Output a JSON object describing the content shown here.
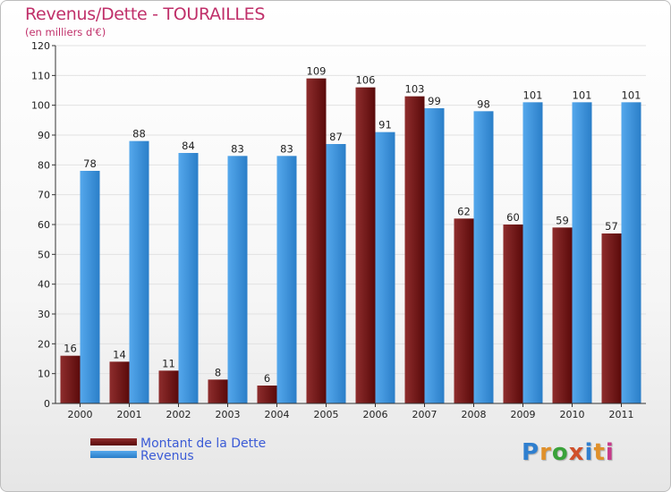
{
  "title": "Revenus/Dette - TOURAILLES",
  "subtitle": "(en milliers d'€)",
  "colors": {
    "dette_dark": "#5a0a0a",
    "dette_light": "#8e2d2d",
    "revenus_dark": "#2a7ec8",
    "revenus_light": "#55a8ec",
    "axis": "#333333",
    "grid": "#e2e2e2"
  },
  "legend": [
    {
      "label": "Montant de la Dette",
      "series": "dette"
    },
    {
      "label": "Revenus",
      "series": "revenus"
    }
  ],
  "logo": {
    "text": "Proxiti"
  },
  "chart_data": {
    "type": "bar",
    "categories": [
      "2000",
      "2001",
      "2002",
      "2003",
      "2004",
      "2005",
      "2006",
      "2007",
      "2008",
      "2009",
      "2010",
      "2011"
    ],
    "series": [
      {
        "name": "Montant de la Dette",
        "values": [
          16,
          14,
          11,
          8,
          6,
          109,
          106,
          103,
          62,
          60,
          59,
          57
        ]
      },
      {
        "name": "Revenus",
        "values": [
          78,
          88,
          84,
          83,
          83,
          87,
          91,
          99,
          98,
          101,
          101,
          101
        ]
      }
    ],
    "ylim": [
      0,
      120
    ],
    "yticks": [
      0,
      10,
      20,
      30,
      40,
      50,
      60,
      70,
      80,
      90,
      100,
      110,
      120
    ],
    "grid": true,
    "legend_position": "bottom-left",
    "xlabel": "",
    "ylabel": ""
  }
}
